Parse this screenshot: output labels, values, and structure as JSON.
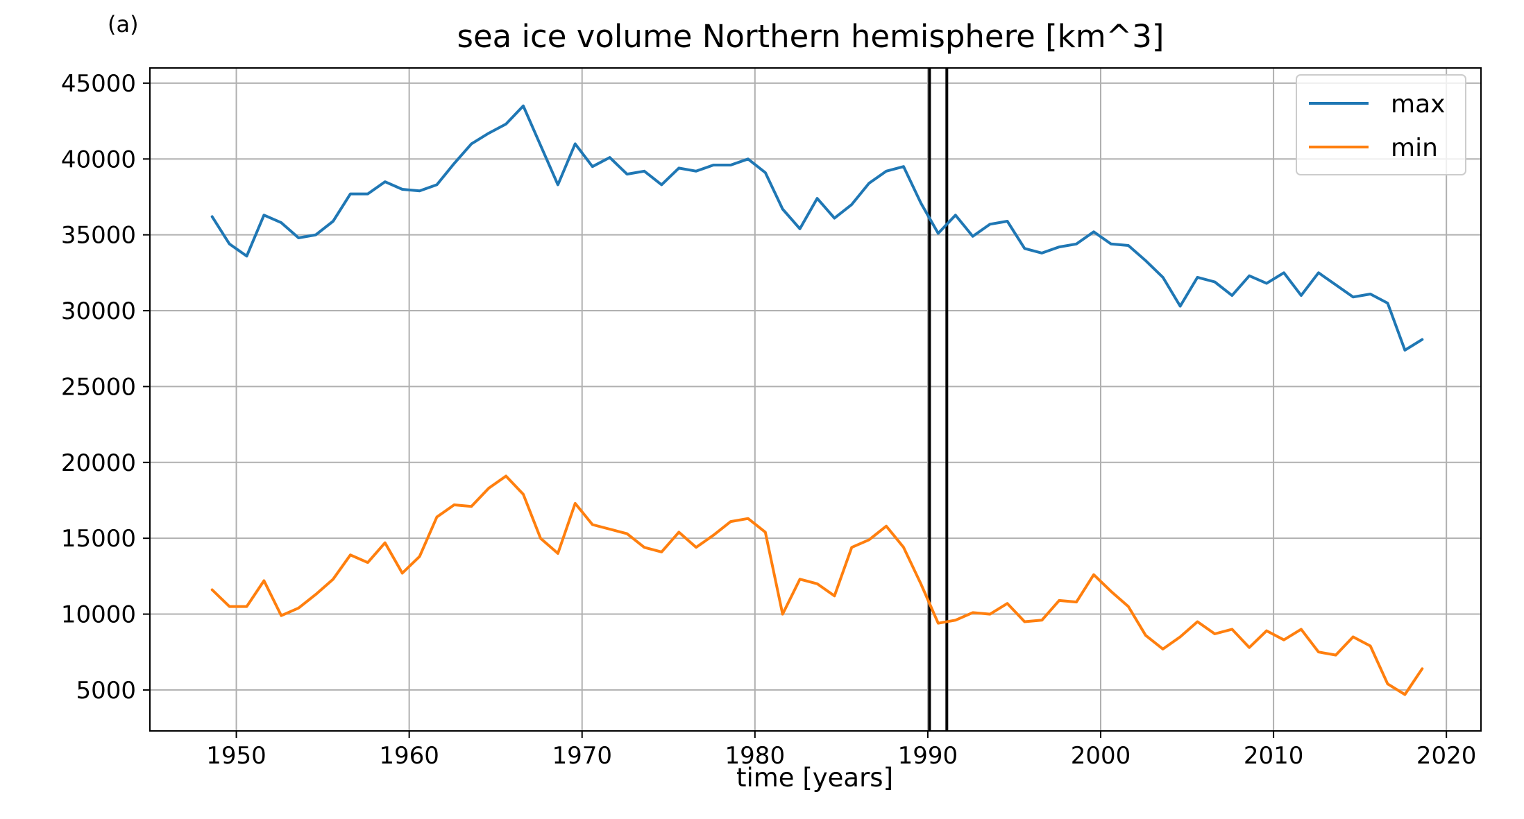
{
  "panel_label": "(a)",
  "chart_data": {
    "type": "line",
    "title": "sea ice volume Northern hemisphere [km^3]",
    "xlabel": "time [years]",
    "ylabel": "",
    "xlim": [
      1945,
      2022
    ],
    "ylim": [
      2300,
      46000
    ],
    "xticks": [
      1950,
      1960,
      1970,
      1980,
      1990,
      2000,
      2010,
      2020
    ],
    "yticks": [
      5000,
      10000,
      15000,
      20000,
      25000,
      30000,
      35000,
      40000,
      45000
    ],
    "grid": true,
    "legend_position": "top-right",
    "vertical_lines": [
      1990.1,
      1991.1
    ],
    "x": [
      1948.6,
      1949.6,
      1950.6,
      1951.6,
      1952.6,
      1953.6,
      1954.6,
      1955.6,
      1956.6,
      1957.6,
      1958.6,
      1959.6,
      1960.6,
      1961.6,
      1962.6,
      1963.6,
      1964.6,
      1965.6,
      1966.6,
      1967.6,
      1968.6,
      1969.6,
      1970.6,
      1971.6,
      1972.6,
      1973.6,
      1974.6,
      1975.6,
      1976.6,
      1977.6,
      1978.6,
      1979.6,
      1980.6,
      1981.6,
      1982.6,
      1983.6,
      1984.6,
      1985.6,
      1986.6,
      1987.6,
      1988.6,
      1989.6,
      1990.6,
      1991.6,
      1992.6,
      1993.6,
      1994.6,
      1995.6,
      1996.6,
      1997.6,
      1998.6,
      1999.6,
      2000.6,
      2001.6,
      2002.6,
      2003.6,
      2004.6,
      2005.6,
      2006.6,
      2007.6,
      2008.6,
      2009.6,
      2010.6,
      2011.6,
      2012.6,
      2013.6,
      2014.6,
      2015.6,
      2016.6,
      2017.6,
      2018.6
    ],
    "series": [
      {
        "name": "max",
        "color": "#1f77b4",
        "values": [
          36200,
          34400,
          33600,
          36300,
          35800,
          34800,
          35000,
          35900,
          37700,
          37700,
          38500,
          38000,
          37900,
          38300,
          39700,
          41000,
          41700,
          42300,
          43500,
          40900,
          38300,
          41000,
          39500,
          40100,
          39000,
          39200,
          38300,
          39400,
          39200,
          39600,
          39600,
          40000,
          39100,
          36700,
          35400,
          37400,
          36100,
          37000,
          38400,
          39200,
          39500,
          37100,
          35100,
          36300,
          34900,
          35700,
          35900,
          34100,
          33800,
          34200,
          34400,
          35200,
          34400,
          34300,
          33300,
          32200,
          30300,
          32200,
          31900,
          31000,
          32300,
          31800,
          32500,
          31000,
          32500,
          31700,
          30900,
          31100,
          30500,
          27400,
          28100
        ]
      },
      {
        "name": "min",
        "color": "#ff7f0e",
        "values": [
          11600,
          10500,
          10500,
          12200,
          9900,
          10400,
          11300,
          12300,
          13900,
          13400,
          14700,
          12700,
          13800,
          16400,
          17200,
          17100,
          18300,
          19100,
          17900,
          15000,
          14000,
          17300,
          15900,
          15600,
          15300,
          14400,
          14100,
          15400,
          14400,
          15200,
          16100,
          16300,
          15400,
          10000,
          12300,
          12000,
          11200,
          14400,
          14900,
          15800,
          14400,
          12000,
          9400,
          9600,
          10100,
          10000,
          10700,
          9500,
          9600,
          10900,
          10800,
          12600,
          11500,
          10500,
          8600,
          7700,
          8500,
          9500,
          8700,
          9000,
          7800,
          8900,
          8300,
          9000,
          7500,
          7300,
          8500,
          7900,
          5400,
          4700,
          6400
        ]
      }
    ]
  }
}
